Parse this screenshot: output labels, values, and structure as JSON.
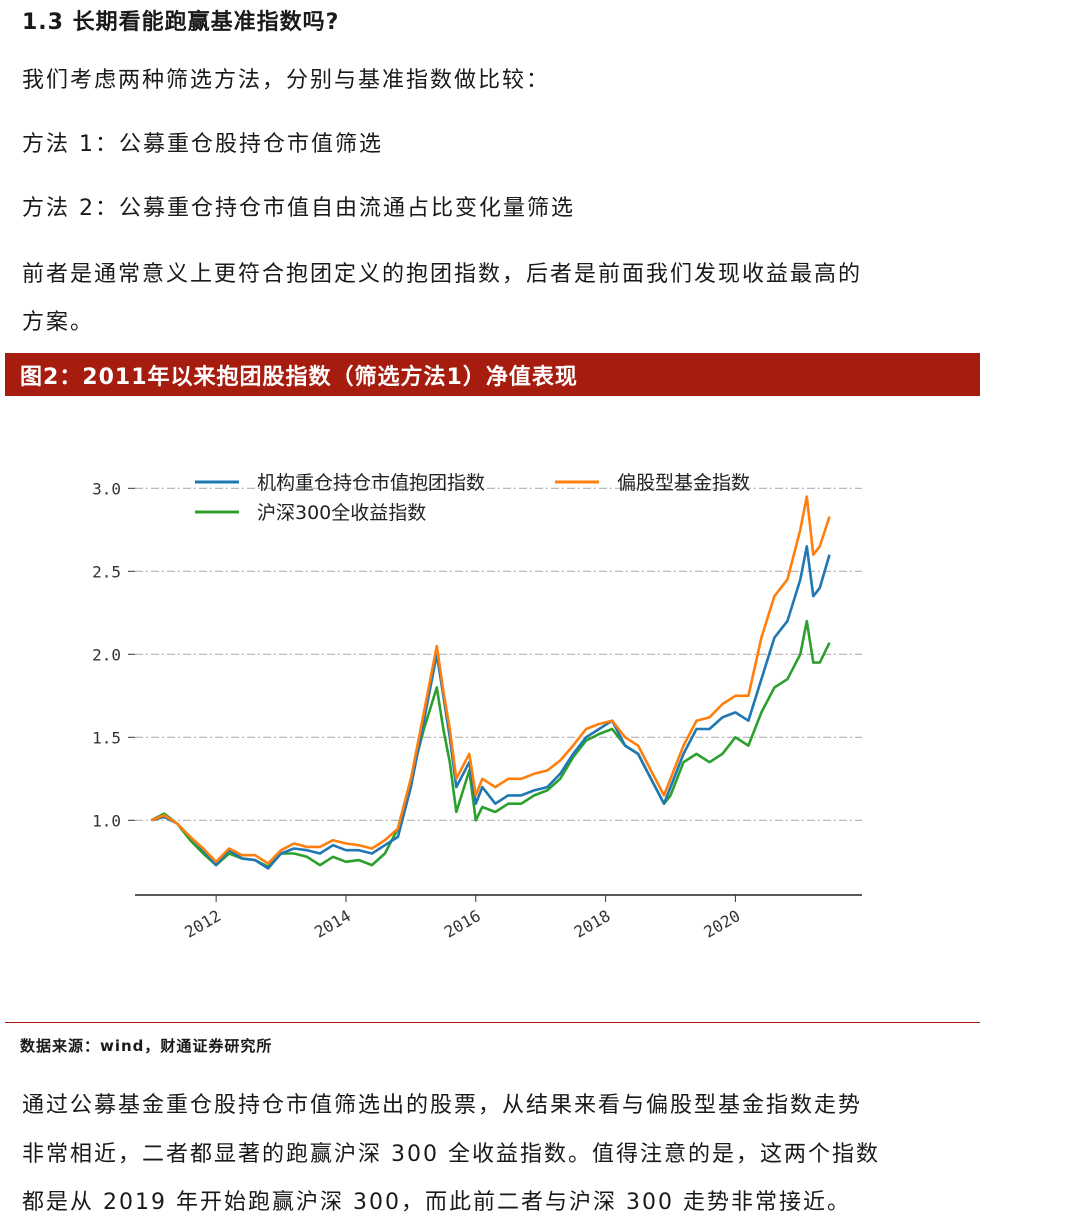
{
  "section": {
    "heading": "1.3  长期看能跑赢基准指数吗?",
    "intro": "我们考虑两种筛选方法，分别与基准指数做比较：",
    "method1": "方法 1：公募重仓股持仓市值筛选",
    "method2": "方法 2：公募重仓持仓市值自由流通占比变化量筛选",
    "para_line1": "前者是通常意义上更符合抱团定义的抱团指数，后者是前面我们发现收益最高的",
    "para_line2": "方案。"
  },
  "figure": {
    "title": "图2：2011年以来抱团股指数（筛选方法1）净值表现",
    "source": "数据来源：wind，财通证券研究所"
  },
  "chart_data": {
    "type": "line",
    "ylim": [
      0.55,
      3.05
    ],
    "xlim": [
      2010.75,
      2021.95
    ],
    "yticks": [
      "1.0",
      "1.5",
      "2.0",
      "2.5",
      "3.0"
    ],
    "xticks": [
      "2012",
      "2014",
      "2016",
      "2018",
      "2020"
    ],
    "grid": "horizontal dash-dot",
    "legend": "top-left",
    "x": [
      2011.0,
      2011.2,
      2011.4,
      2011.6,
      2011.8,
      2012.0,
      2012.2,
      2012.4,
      2012.6,
      2012.8,
      2013.0,
      2013.2,
      2013.4,
      2013.6,
      2013.8,
      2014.0,
      2014.2,
      2014.4,
      2014.6,
      2014.8,
      2015.0,
      2015.2,
      2015.4,
      2015.5,
      2015.6,
      2015.7,
      2015.9,
      2016.0,
      2016.1,
      2016.3,
      2016.5,
      2016.7,
      2016.9,
      2017.1,
      2017.3,
      2017.5,
      2017.7,
      2017.9,
      2018.1,
      2018.3,
      2018.5,
      2018.7,
      2018.9,
      2019.0,
      2019.2,
      2019.4,
      2019.6,
      2019.8,
      2020.0,
      2020.2,
      2020.4,
      2020.6,
      2020.8,
      2021.0,
      2021.1,
      2021.2,
      2021.3,
      2021.45
    ],
    "series": [
      {
        "name": "机构重仓持仓市值抱团指数",
        "color": "#1f77b4",
        "values": [
          1.0,
          1.02,
          0.98,
          0.9,
          0.82,
          0.73,
          0.82,
          0.77,
          0.76,
          0.71,
          0.8,
          0.83,
          0.82,
          0.8,
          0.85,
          0.82,
          0.82,
          0.8,
          0.85,
          0.9,
          1.2,
          1.6,
          2.0,
          1.75,
          1.5,
          1.2,
          1.35,
          1.1,
          1.2,
          1.1,
          1.15,
          1.15,
          1.18,
          1.2,
          1.28,
          1.4,
          1.5,
          1.55,
          1.6,
          1.45,
          1.4,
          1.25,
          1.1,
          1.2,
          1.4,
          1.55,
          1.55,
          1.62,
          1.65,
          1.6,
          1.85,
          2.1,
          2.2,
          2.45,
          2.65,
          2.35,
          2.4,
          2.6
        ]
      },
      {
        "name": "偏股型基金指数",
        "color": "#ff7f0e",
        "values": [
          1.0,
          1.03,
          0.98,
          0.9,
          0.83,
          0.75,
          0.83,
          0.79,
          0.79,
          0.74,
          0.82,
          0.86,
          0.84,
          0.84,
          0.88,
          0.86,
          0.85,
          0.83,
          0.88,
          0.95,
          1.25,
          1.65,
          2.05,
          1.78,
          1.55,
          1.25,
          1.4,
          1.15,
          1.25,
          1.2,
          1.25,
          1.25,
          1.28,
          1.3,
          1.36,
          1.45,
          1.55,
          1.58,
          1.6,
          1.5,
          1.45,
          1.3,
          1.15,
          1.25,
          1.45,
          1.6,
          1.62,
          1.7,
          1.75,
          1.75,
          2.1,
          2.35,
          2.45,
          2.75,
          2.95,
          2.6,
          2.65,
          2.83
        ]
      },
      {
        "name": "沪深300全收益指数",
        "color": "#2ca02c",
        "values": [
          1.0,
          1.04,
          0.98,
          0.88,
          0.8,
          0.73,
          0.8,
          0.77,
          0.76,
          0.72,
          0.8,
          0.8,
          0.78,
          0.73,
          0.78,
          0.75,
          0.76,
          0.73,
          0.8,
          0.95,
          1.25,
          1.55,
          1.8,
          1.55,
          1.35,
          1.05,
          1.3,
          1.0,
          1.08,
          1.05,
          1.1,
          1.1,
          1.15,
          1.18,
          1.25,
          1.38,
          1.48,
          1.52,
          1.55,
          1.45,
          1.4,
          1.25,
          1.1,
          1.15,
          1.35,
          1.4,
          1.35,
          1.4,
          1.5,
          1.45,
          1.65,
          1.8,
          1.85,
          2.0,
          2.2,
          1.95,
          1.95,
          2.07
        ]
      }
    ]
  },
  "body": {
    "line1": "通过公募基金重仓股持仓市值筛选出的股票，从结果来看与偏股型基金指数走势",
    "line2": "非常相近，二者都显著的跑赢沪深 300 全收益指数。值得注意的是，这两个指数",
    "line3": "都是从 2019 年开始跑赢沪深 300，而此前二者与沪深 300 走势非常接近。"
  }
}
